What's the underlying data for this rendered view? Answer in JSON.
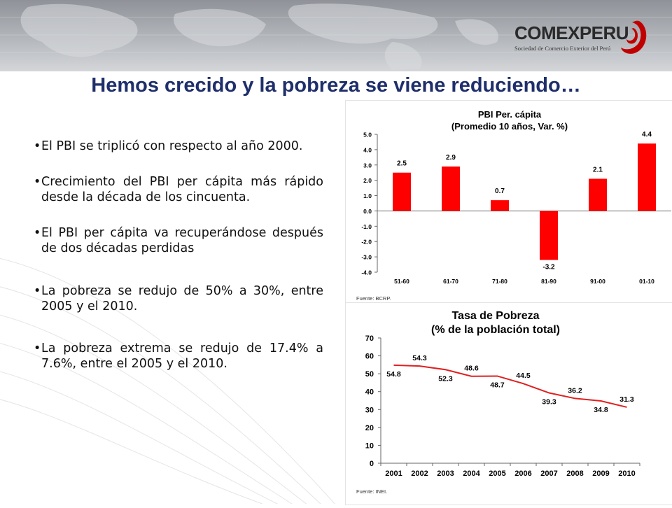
{
  "header": {
    "logo_name": "COMEXPERU",
    "logo_subtitle": "Sociedad de Comercio Exterior del Perú",
    "brand_color": "#c00000"
  },
  "title": "Hemos crecido y la pobreza se viene reduciendo…",
  "bullets": [
    "El PBI se triplicó con respecto al año 2000.",
    "Crecimiento del PBI per cápita más rápido desde la década de los cincuenta.",
    "El PBI per cápita va recuperándose después de dos décadas perdidas",
    "La pobreza se redujo de 50% a 30%, entre 2005 y el 2010.",
    "La pobreza extrema se redujo de 17.4% a 7.6%, entre el 2005 y el 2010."
  ],
  "chart_data": [
    {
      "type": "bar",
      "title": "PBI Per. cápita",
      "subtitle": "(Promedio 10 años, Var. %)",
      "categories": [
        "51-60",
        "61-70",
        "71-80",
        "81-90",
        "91-00",
        "01-10"
      ],
      "values": [
        2.5,
        2.9,
        0.7,
        -3.2,
        2.1,
        4.4
      ],
      "data_labels": [
        "2.5",
        "2.9",
        "0.7",
        "-3.2",
        "2.1",
        "4.4"
      ],
      "y_ticks": [
        "5.0",
        "4.0",
        "3.0",
        "2.0",
        "1.0",
        "0.0",
        "-1.0",
        "-2.0",
        "-3.0",
        "-4.0"
      ],
      "ylim": [
        -4,
        5
      ],
      "source": "Fuente: BCRP.",
      "bar_color": "#ff0000",
      "grid": false
    },
    {
      "type": "line",
      "title": "Tasa de Pobreza",
      "subtitle": "(% de la población total)",
      "x": [
        "2001",
        "2002",
        "2003",
        "2004",
        "2005",
        "2006",
        "2007",
        "2008",
        "2009",
        "2010"
      ],
      "values": [
        54.8,
        54.3,
        52.3,
        48.6,
        48.7,
        44.5,
        39.3,
        36.2,
        34.8,
        31.3
      ],
      "data_labels": [
        "54.8",
        "54.3",
        "52.3",
        "48.6",
        "48.7",
        "44.5",
        "39.3",
        "36.2",
        "34.8",
        "31.3"
      ],
      "label_side": [
        "below",
        "above",
        "below",
        "above",
        "below",
        "above",
        "below",
        "above",
        "below",
        "above"
      ],
      "y_ticks": [
        "70",
        "60",
        "50",
        "40",
        "30",
        "20",
        "10",
        "0"
      ],
      "ylim": [
        0,
        70
      ],
      "source": "Fuente: INEI.",
      "line_color": "#e02020",
      "grid": false
    }
  ]
}
